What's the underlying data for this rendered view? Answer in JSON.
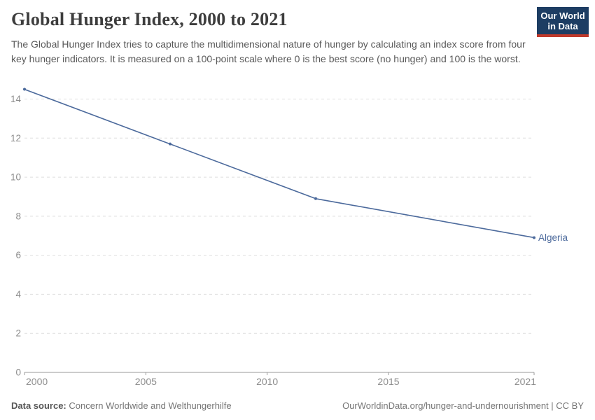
{
  "header": {
    "title": "Global Hunger Index, 2000 to 2021",
    "subtitle": "The Global Hunger Index tries to capture the multidimensional nature of hunger by calculating an index score from four key hunger indicators. It is measured on a 100-point scale where 0 is the best score (no hunger) and 100 is the worst."
  },
  "logo": {
    "line1": "Our World",
    "line2": "in Data",
    "bg_color": "#1d3d63",
    "accent_color": "#c0392b"
  },
  "chart_data": {
    "type": "line",
    "title": "Global Hunger Index, 2000 to 2021",
    "x": [
      2000,
      2006,
      2012,
      2021
    ],
    "series": [
      {
        "name": "Algeria",
        "values": [
          14.5,
          11.7,
          8.9,
          6.9
        ],
        "color": "#4C6A9C"
      }
    ],
    "xlabel": "",
    "ylabel": "",
    "xlim": [
      2000,
      2021
    ],
    "x_ticks": [
      2000,
      2005,
      2010,
      2015,
      2021
    ],
    "y_ticks": [
      0,
      2,
      4,
      6,
      8,
      10,
      12,
      14
    ],
    "ylim": [
      0,
      14.9
    ],
    "grid": "horizontal-dashed",
    "legend": "end-of-line-label",
    "colors": {
      "grid": "#dedede",
      "axis": "#999999",
      "tick_label": "#8c8c8c"
    }
  },
  "footer": {
    "source_label": "Data source:",
    "source_value": " Concern Worldwide and Welthungerhilfe",
    "credit": "OurWorldinData.org/hunger-and-undernourishment | CC BY"
  }
}
